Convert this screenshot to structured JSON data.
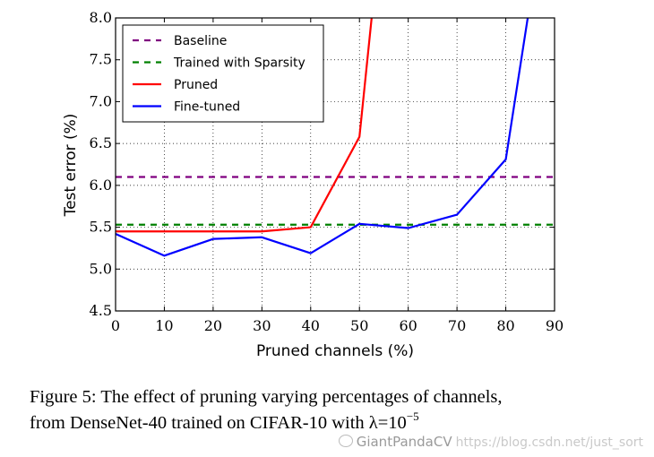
{
  "chart_data": {
    "type": "line",
    "xlabel": "Pruned channels (%)",
    "ylabel": "Test error (%)",
    "xlim": [
      0,
      90
    ],
    "ylim": [
      4.5,
      8.0
    ],
    "xticks": [
      "0",
      "10",
      "20",
      "30",
      "40",
      "50",
      "60",
      "70",
      "80",
      "90"
    ],
    "yticks": [
      "4.5",
      "5.0",
      "5.5",
      "6.0",
      "6.5",
      "7.0",
      "7.5",
      "8.0"
    ],
    "grid": true,
    "legend_position": "top-left",
    "series": [
      {
        "name": "Baseline",
        "color": "#800080",
        "style": "dashed",
        "x": [
          0,
          90
        ],
        "y": [
          6.1,
          6.1
        ]
      },
      {
        "name": "Trained with Sparsity",
        "color": "#008000",
        "style": "dashed",
        "x": [
          0,
          90
        ],
        "y": [
          5.53,
          5.53
        ]
      },
      {
        "name": "Pruned",
        "color": "#ff0000",
        "style": "solid",
        "x": [
          0,
          10,
          20,
          30,
          40,
          50,
          52.5
        ],
        "y": [
          5.45,
          5.45,
          5.45,
          5.45,
          5.5,
          6.58,
          8.0
        ]
      },
      {
        "name": "Fine-tuned",
        "color": "#0000ff",
        "style": "solid",
        "x": [
          0,
          10,
          20,
          30,
          40,
          50,
          60,
          70,
          80,
          84.5
        ],
        "y": [
          5.42,
          5.16,
          5.36,
          5.38,
          5.19,
          5.54,
          5.49,
          5.65,
          6.31,
          8.0
        ]
      }
    ]
  },
  "caption": {
    "line1": "Figure 5: The effect of pruning varying percentages of channels,",
    "line2": "from DenseNet-40 trained on CIFAR-10 with λ=10",
    "exponent": "−5"
  },
  "watermark": {
    "brand": "GiantPandaCV",
    "url": "https://blog.csdn.net/just_sort"
  }
}
